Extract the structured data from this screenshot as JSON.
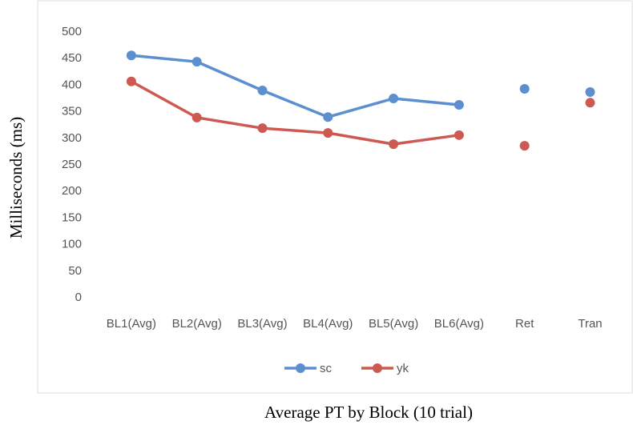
{
  "chart_data": {
    "type": "line",
    "x_label": "Average PT by Block (10 trial)",
    "y_label": "Milliseconds (ms)",
    "categories": [
      "BL1(Avg)",
      "BL2(Avg)",
      "BL3(Avg)",
      "BL4(Avg)",
      "BL5(Avg)",
      "BL6(Avg)",
      "Ret",
      "Tran"
    ],
    "series": [
      {
        "name": "sc",
        "color": "#5b8fd0",
        "values": [
          456,
          444,
          390,
          340,
          375,
          363,
          393,
          387
        ]
      },
      {
        "name": "yk",
        "color": "#cc5a52",
        "values": [
          407,
          339,
          319,
          310,
          289,
          306,
          286,
          367
        ]
      }
    ],
    "line_points": 6,
    "ylim": [
      0,
      500
    ],
    "yticks": [
      0,
      50,
      100,
      150,
      200,
      250,
      300,
      350,
      400,
      450,
      500
    ],
    "grid": false,
    "legend": "bottom"
  }
}
